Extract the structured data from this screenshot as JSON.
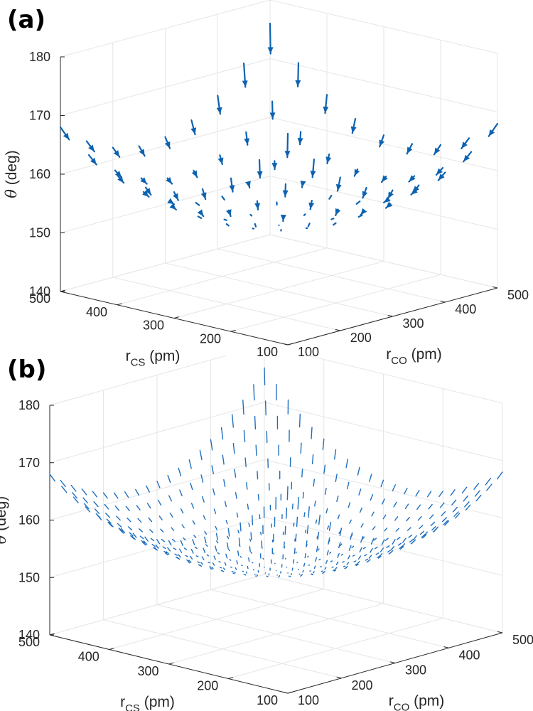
{
  "chart_data": [
    {
      "panel": "(a)",
      "type": "quiver3d",
      "zlabel": {
        "symbol": "θ",
        "unit": "(deg)"
      },
      "xlabel": {
        "main": "r",
        "sub": "CS",
        "unit": "(pm)"
      },
      "ylabel": {
        "main": "r",
        "sub": "CO",
        "unit": "(pm)"
      },
      "x_range": [
        100,
        500
      ],
      "y_range": [
        100,
        500
      ],
      "z_range": [
        140,
        180
      ],
      "x_ticks": [
        "100",
        "200",
        "300",
        "400",
        "500"
      ],
      "y_ticks": [
        "100",
        "200",
        "300",
        "400",
        "500"
      ],
      "z_ticks": [
        "140",
        "150",
        "160",
        "170",
        "180"
      ],
      "grid": true,
      "arrow_color": "#0d62b0",
      "arrowheads": true,
      "grid_points": 9,
      "vector_scale": 2.1
    },
    {
      "panel": "(b)",
      "type": "quiver3d",
      "zlabel": {
        "symbol": "θ",
        "unit": "(deg)"
      },
      "xlabel": {
        "main": "r",
        "sub": "CS",
        "unit": "(pm)"
      },
      "ylabel": {
        "main": "r",
        "sub": "CO",
        "unit": "(pm)"
      },
      "x_range": [
        100,
        500
      ],
      "y_range": [
        100,
        500
      ],
      "z_range": [
        140,
        180
      ],
      "x_ticks": [
        "100",
        "200",
        "300",
        "400",
        "500"
      ],
      "y_ticks": [
        "100",
        "200",
        "300",
        "400",
        "500"
      ],
      "z_ticks": [
        "140",
        "150",
        "160",
        "170",
        "180"
      ],
      "grid": true,
      "arrow_color": "#1f6fbf",
      "arrowheads": false,
      "grid_points": 21,
      "vector_scale": 3.0
    }
  ]
}
